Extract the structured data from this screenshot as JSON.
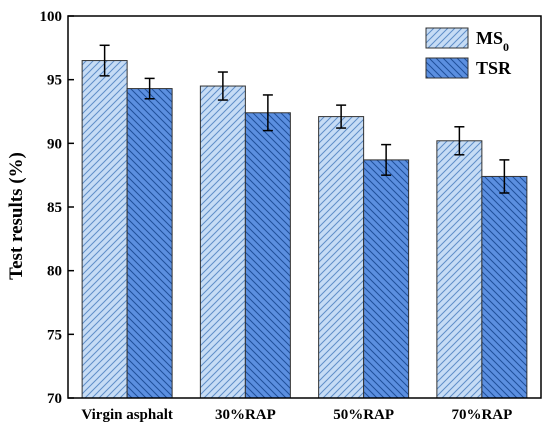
{
  "chart_data": {
    "type": "bar",
    "categories": [
      "Virgin asphalt",
      "30%RAP",
      "50%RAP",
      "70%RAP"
    ],
    "series": [
      {
        "name": "MS",
        "name_subscript": "0",
        "values": [
          96.5,
          94.5,
          92.1,
          90.2
        ],
        "errors": [
          1.2,
          1.1,
          0.9,
          1.1
        ],
        "fill": "#c6dcf5",
        "hatch": "#5f8ec8"
      },
      {
        "name": "TSR",
        "values": [
          94.3,
          92.4,
          88.7,
          87.4
        ],
        "errors": [
          0.8,
          1.4,
          1.2,
          1.3
        ],
        "fill": "#5b8fe0",
        "hatch": "#1f4f9a"
      }
    ],
    "ylabel": "Test results (%)",
    "xlabel": "",
    "ylim": [
      70,
      100
    ],
    "yticks": [
      70,
      75,
      80,
      85,
      90,
      95,
      100
    ],
    "legend_position": "top-right",
    "grid": false
  }
}
